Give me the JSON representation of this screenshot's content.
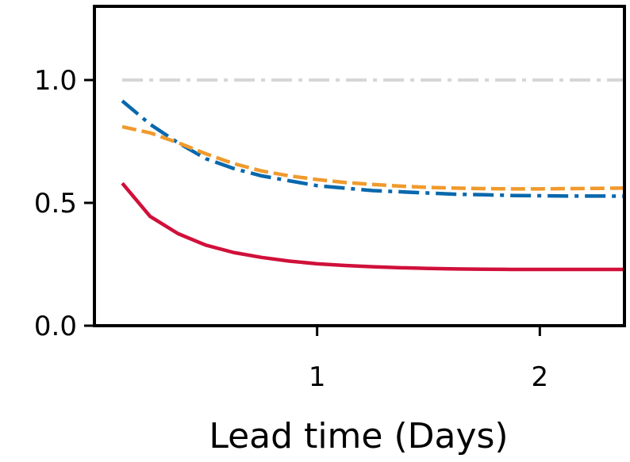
{
  "chart_data": {
    "type": "line",
    "xlabel": "Lead time (Days)",
    "ylabel": "",
    "xlim": [
      0.0,
      2.38
    ],
    "ylim": [
      0.0,
      1.3
    ],
    "xticks": [
      1,
      2
    ],
    "xtick_labels": [
      "1",
      "2"
    ],
    "yticks": [
      0.0,
      0.5,
      1.0
    ],
    "ytick_labels": [
      "0.0",
      "0.5",
      "1.0"
    ],
    "grid": false,
    "legend": "none",
    "x": [
      0.125,
      0.25,
      0.375,
      0.5,
      0.625,
      0.75,
      0.875,
      1.0,
      1.125,
      1.25,
      1.375,
      1.5,
      1.625,
      1.75,
      1.875,
      2.0,
      2.125,
      2.25,
      2.375
    ],
    "series": [
      {
        "color": "#d6d6d6",
        "style": "dashdot",
        "values": [
          1.0,
          1.0,
          1.0,
          1.0,
          1.0,
          1.0,
          1.0,
          1.0,
          1.0,
          1.0,
          1.0,
          1.0,
          1.0,
          1.0,
          1.0,
          1.0,
          1.0,
          1.0,
          1.0
        ]
      },
      {
        "color": "#0868ac",
        "style": "dashdot",
        "values": [
          0.915,
          0.82,
          0.745,
          0.68,
          0.64,
          0.61,
          0.59,
          0.57,
          0.56,
          0.55,
          0.545,
          0.54,
          0.535,
          0.533,
          0.53,
          0.529,
          0.528,
          0.528,
          0.527
        ]
      },
      {
        "color": "#f09a2c",
        "style": "dashed",
        "values": [
          0.81,
          0.785,
          0.745,
          0.7,
          0.66,
          0.63,
          0.61,
          0.595,
          0.583,
          0.575,
          0.568,
          0.563,
          0.56,
          0.558,
          0.557,
          0.557,
          0.558,
          0.559,
          0.56
        ]
      },
      {
        "color": "#d0103a",
        "style": "solid",
        "values": [
          0.58,
          0.445,
          0.375,
          0.328,
          0.298,
          0.278,
          0.263,
          0.252,
          0.245,
          0.24,
          0.236,
          0.233,
          0.231,
          0.23,
          0.229,
          0.229,
          0.229,
          0.229,
          0.229
        ]
      }
    ]
  }
}
